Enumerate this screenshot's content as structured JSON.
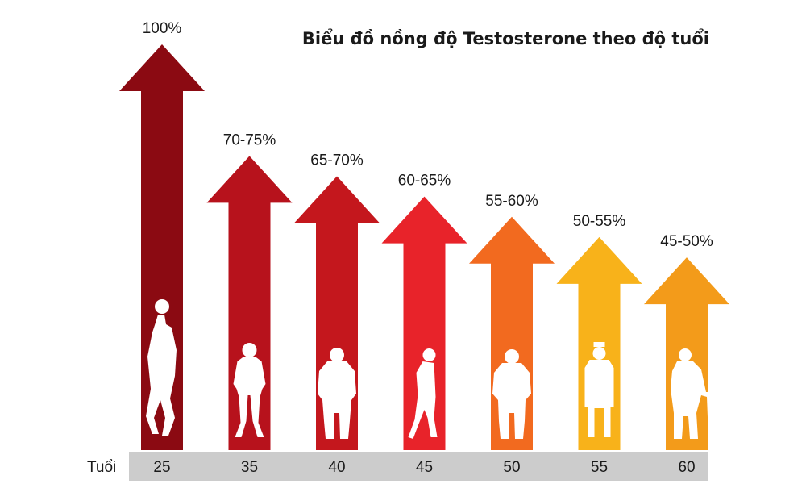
{
  "chart_data": {
    "type": "bar",
    "title": "Biểu đồ nồng độ Testosterone theo độ tuổi",
    "xlabel": "Tuổi",
    "ylabel": "",
    "categories": [
      "25",
      "35",
      "40",
      "45",
      "50",
      "55",
      "60"
    ],
    "value_labels": [
      "100%",
      "70-75%",
      "65-70%",
      "60-65%",
      "55-60%",
      "50-55%",
      "45-50%"
    ],
    "values": [
      100,
      72.5,
      67.5,
      62.5,
      57.5,
      52.5,
      47.5
    ],
    "ylim": [
      0,
      100
    ],
    "grid": false,
    "legend": "none"
  },
  "colors": {
    "bars": [
      "#8b0a12",
      "#b7121c",
      "#c4171d",
      "#e8232a",
      "#f26a1f",
      "#f8b21a",
      "#f39b1a"
    ],
    "axis_band": "#cccccc",
    "icons": "#ffffff"
  },
  "icons": [
    "athlete-with-ball-icon",
    "young-man-icon",
    "heavy-man-icon",
    "walking-man-icon",
    "older-man-icon",
    "old-man-standing-icon",
    "old-man-with-cane-icon"
  ]
}
